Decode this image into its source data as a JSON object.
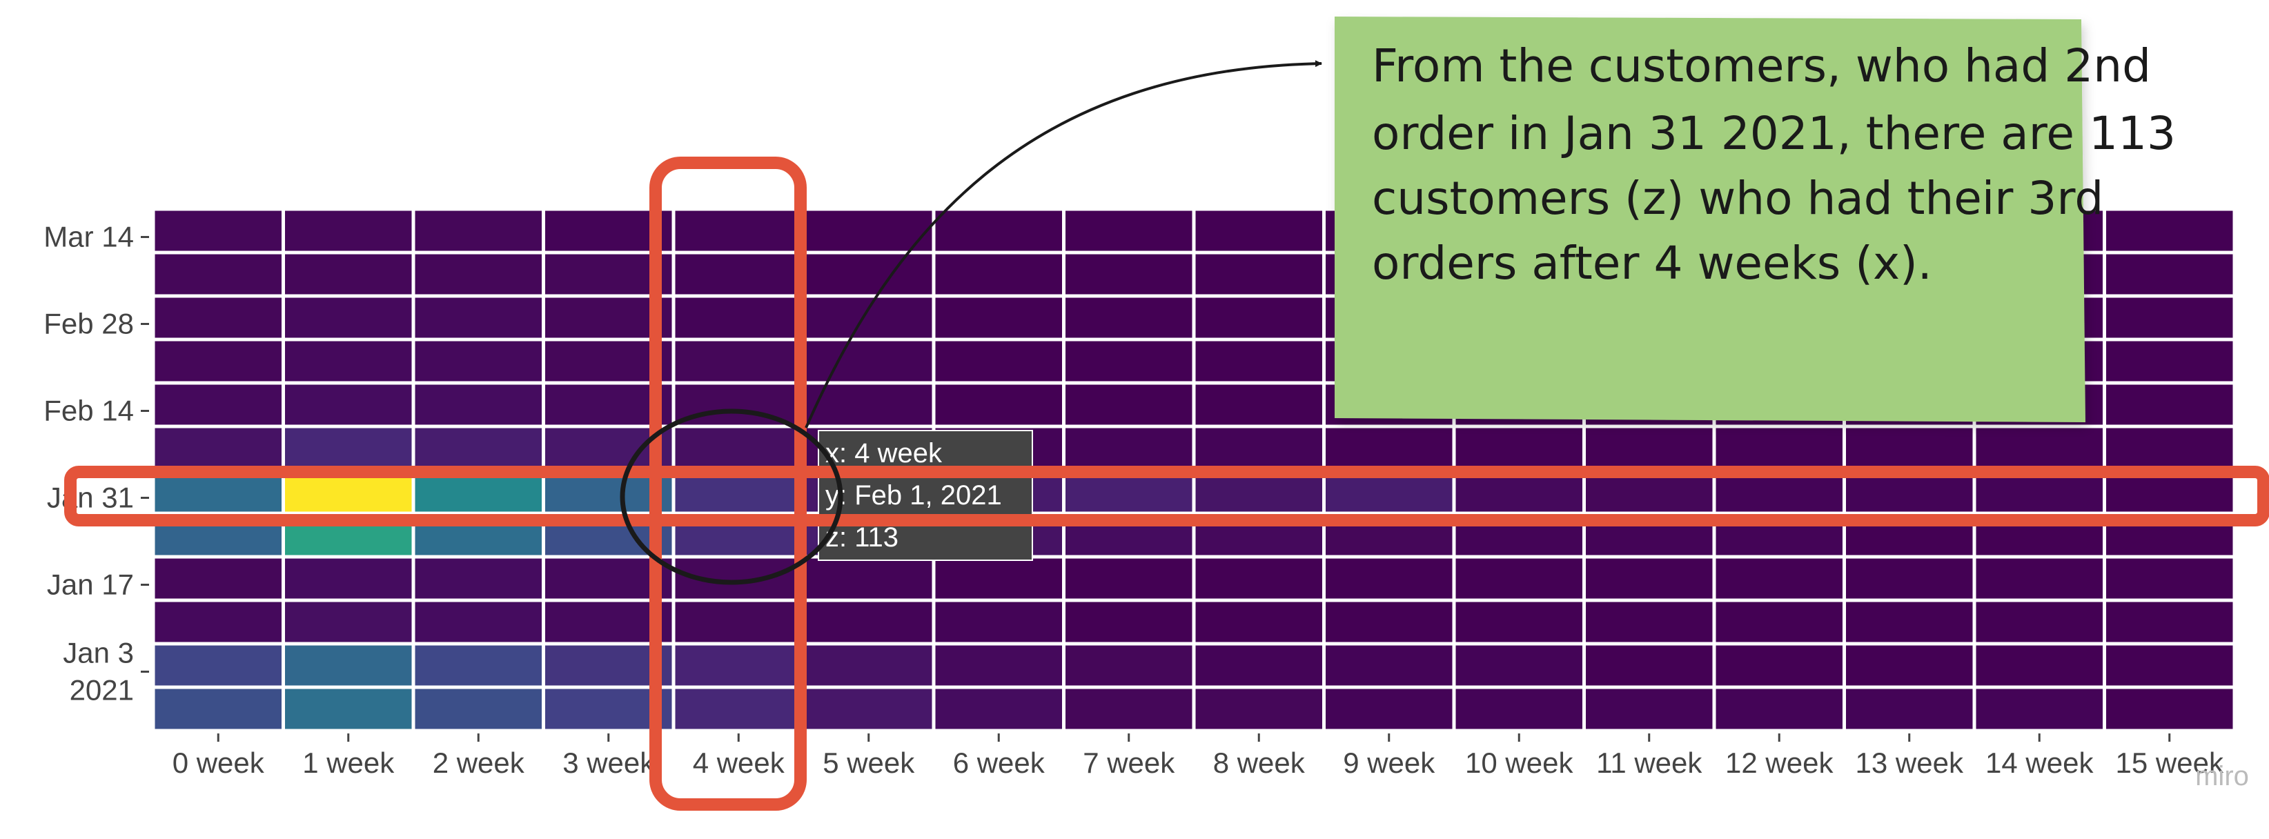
{
  "chart_data": {
    "type": "heatmap",
    "title": "",
    "xlabel": "",
    "ylabel": "",
    "x": [
      "0 week",
      "1 week",
      "2 week",
      "3 week",
      "4 week",
      "5 week",
      "6 week",
      "7 week",
      "8 week",
      "9 week",
      "10 week",
      "11 week",
      "12 week",
      "13 week",
      "14 week",
      "15 week"
    ],
    "y": [
      "2020-12-28",
      "2021-01-04",
      "2021-01-11",
      "2021-01-18",
      "2021-01-25",
      "2021-02-01",
      "2021-02-08",
      "2021-02-15",
      "2021-02-22",
      "2021-03-01",
      "2021-03-08",
      "2021-03-15"
    ],
    "y_tick_labels": [
      {
        "date": "2021-01-03",
        "lines": [
          "Jan 3",
          "2021"
        ]
      },
      {
        "date": "2021-01-17",
        "lines": [
          "Jan 17"
        ]
      },
      {
        "date": "2021-01-31",
        "lines": [
          "Jan 31"
        ]
      },
      {
        "date": "2021-02-14",
        "lines": [
          "Feb 14"
        ]
      },
      {
        "date": "2021-02-28",
        "lines": [
          "Feb 28"
        ]
      },
      {
        "date": "2021-03-14",
        "lines": [
          "Mar 14"
        ]
      }
    ],
    "z_relative": [
      [
        0.3,
        0.46,
        0.3,
        0.24,
        0.14,
        0.08,
        0.04,
        0.02,
        0.02,
        0.01,
        0.01,
        0.01,
        0.01,
        0.01,
        0.01,
        0.0
      ],
      [
        0.26,
        0.42,
        0.27,
        0.19,
        0.12,
        0.06,
        0.03,
        0.02,
        0.01,
        0.01,
        0.01,
        0.0,
        0.0,
        0.0,
        0.0,
        0.0
      ],
      [
        0.03,
        0.05,
        0.04,
        0.03,
        0.02,
        0.01,
        0.01,
        0.0,
        0.0,
        0.0,
        0.0,
        0.0,
        0.0,
        0.0,
        0.0,
        0.0
      ],
      [
        0.02,
        0.04,
        0.04,
        0.03,
        0.02,
        0.01,
        0.0,
        0.0,
        0.0,
        0.0,
        0.0,
        0.0,
        0.0,
        0.0,
        0.0,
        0.0
      ],
      [
        0.4,
        0.68,
        0.45,
        0.3,
        0.16,
        0.1,
        0.06,
        0.04,
        0.03,
        0.02,
        0.01,
        0.01,
        0.01,
        0.0,
        0.0,
        0.0
      ],
      [
        0.44,
        1.0,
        0.58,
        0.4,
        0.18,
        0.08,
        0.09,
        0.11,
        0.07,
        0.1,
        0.03,
        0.02,
        0.01,
        0.01,
        0.01,
        0.0
      ],
      [
        0.06,
        0.14,
        0.1,
        0.08,
        0.05,
        0.02,
        0.01,
        0.01,
        0.01,
        0.0,
        0.0,
        0.0,
        0.0,
        0.0,
        0.0,
        0.0
      ],
      [
        0.03,
        0.04,
        0.04,
        0.03,
        0.02,
        0.01,
        0.0,
        0.0,
        0.0,
        0.0,
        0.0,
        0.0,
        0.0,
        0.0,
        0.0,
        0.0
      ],
      [
        0.02,
        0.03,
        0.03,
        0.02,
        0.02,
        0.01,
        0.0,
        0.0,
        0.0,
        0.0,
        0.0,
        0.0,
        0.0,
        0.0,
        0.0,
        0.0
      ],
      [
        0.02,
        0.03,
        0.03,
        0.02,
        0.01,
        0.01,
        0.0,
        0.0,
        0.0,
        0.0,
        0.0,
        0.0,
        0.0,
        0.0,
        0.0,
        0.0
      ],
      [
        0.02,
        0.02,
        0.02,
        0.02,
        0.01,
        0.0,
        0.0,
        0.0,
        0.0,
        0.0,
        0.0,
        0.0,
        0.0,
        0.0,
        0.0,
        0.0
      ],
      [
        0.02,
        0.02,
        0.02,
        0.01,
        0.01,
        0.0,
        0.0,
        0.0,
        0.0,
        0.0,
        0.0,
        0.0,
        0.0,
        0.0,
        0.0,
        0.0
      ]
    ],
    "colorscale": "viridis",
    "grid": false,
    "legend": "none"
  },
  "tooltip": {
    "x_line": "x: 4 week",
    "y_line": "y: Feb 1, 2021",
    "z_line": "z: 113"
  },
  "sticky_note": {
    "lines": [
      "From the customers, who had 2nd",
      "order in Jan 31 2021, there are 113",
      "customers (z) who had their 3rd",
      "orders after 4 weeks (x)."
    ],
    "color": "#a3cf7f"
  },
  "annotations": {
    "highlight_color": "#e4543a",
    "circle_color": "#1a1a1a",
    "arrow_color": "#1a1a1a",
    "highlight_row": "2021-02-01",
    "highlight_col": "4 week"
  },
  "brand": "miro"
}
